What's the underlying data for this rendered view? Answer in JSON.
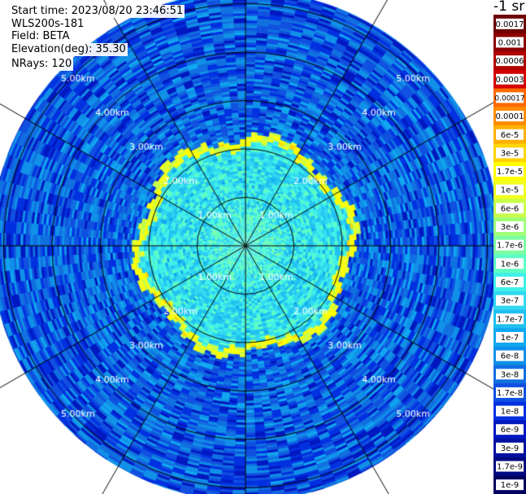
{
  "info": {
    "start_time": "Start time: 2023/08/20 23:46:51",
    "instrument": "WLS200s-181",
    "field": "Field: BETA",
    "elevation": "Elevation(deg): 35.30",
    "nrays": "NRays: 120"
  },
  "colorbar": {
    "unit": "-1 sr",
    "ticks": [
      "0.0017",
      "0.001",
      "0.0006",
      "0.0003",
      "0.00017",
      "0.0001",
      "6e-5",
      "3e-5",
      "1.7e-5",
      "1e-5",
      "6e-6",
      "3e-6",
      "1.7e-6",
      "1e-6",
      "6e-7",
      "3e-7",
      "1.7e-7",
      "1e-7",
      "6e-8",
      "3e-8",
      "1.7e-8",
      "1e-8",
      "6e-9",
      "3e-9",
      "1.7e-9",
      "1e-9"
    ],
    "colors": [
      "#6e0000",
      "#8c0000",
      "#b00000",
      "#d40000",
      "#ff6a00",
      "#ff8c00",
      "#ffb000",
      "#ffd400",
      "#ffff00",
      "#f0ff20",
      "#c8ff48",
      "#a0ff78",
      "#7cffa0",
      "#5cffc4",
      "#40f0e8",
      "#30d8f0",
      "#20c0f0",
      "#10a8f0",
      "#1090e8",
      "#1070e0",
      "#1050e0",
      "#0030e0",
      "#0018c0",
      "#0010a0",
      "#000a80",
      "#000060"
    ]
  },
  "chart_data": {
    "type": "heatmap",
    "projection": "polar PPI",
    "field": "BETA",
    "unit": "-1 sr",
    "n_rays": 120,
    "range_max_km": 5.0,
    "range_rings_km": [
      1.0,
      2.0,
      3.0,
      4.0,
      5.0
    ],
    "range_labels": [
      "1.00km",
      "2.00km",
      "3.00km",
      "4.00km",
      "5.00km"
    ],
    "radial_spokes_deg": [
      0,
      30,
      60,
      90,
      120,
      150,
      180,
      210,
      240,
      270,
      300,
      330
    ],
    "scale": "log",
    "zones": [
      {
        "from_km": 0.0,
        "to_km": 2.05,
        "beta": 6e-07
      },
      {
        "from_km": 2.05,
        "to_km": 2.2,
        "beta": 1e-05
      },
      {
        "from_km": 2.2,
        "to_km": 5.3,
        "beta": 3e-08
      }
    ]
  }
}
